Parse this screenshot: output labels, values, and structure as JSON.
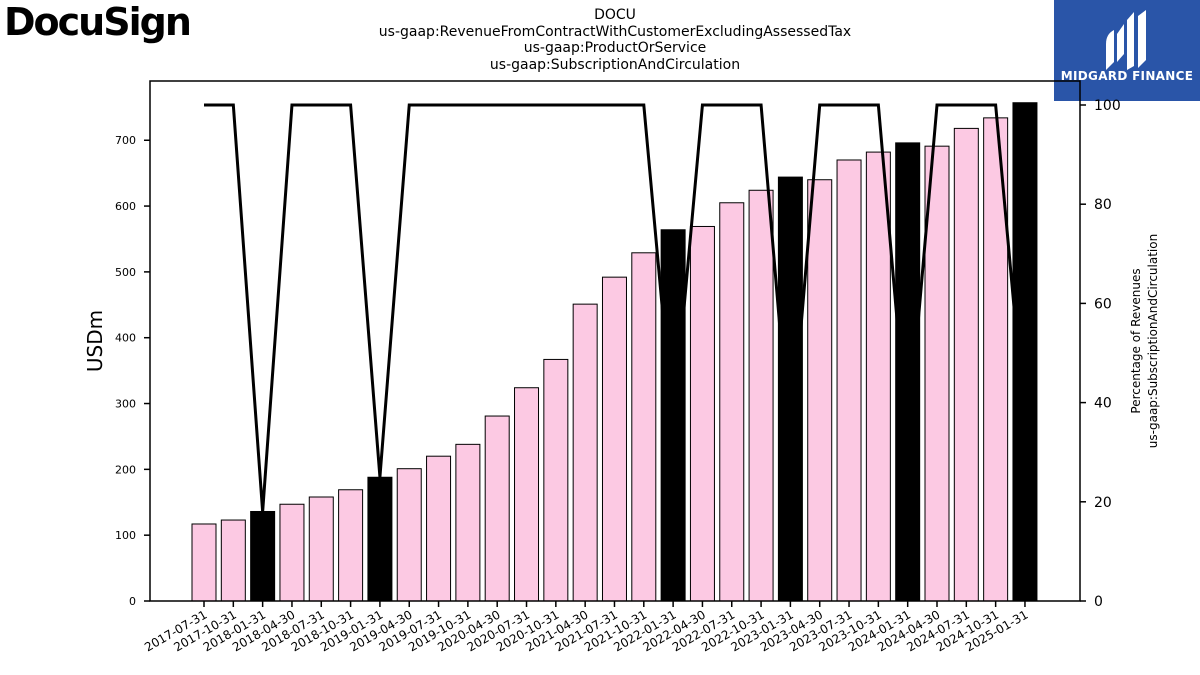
{
  "brand": {
    "logo": "DocuSign",
    "badge": "MIDGARD FINANCE"
  },
  "colors": {
    "bar_subscription": "#fcc9e3",
    "bar_full": "#000000",
    "line": "#000000",
    "badge_bg": "#2a55a8"
  },
  "chart_data": {
    "type": "bar",
    "title": [
      "DOCU",
      "us-gaap:RevenueFromContractWithCustomerExcludingAssessedTax",
      "us-gaap:ProductOrService",
      "us-gaap:SubscriptionAndCirculation"
    ],
    "ylabel": "USDm",
    "y2label": [
      "Percentage of Revenues",
      "us-gaap:SubscriptionAndCirculation"
    ],
    "ylim": [
      0,
      790
    ],
    "y2lim": [
      0,
      100
    ],
    "yticks": [
      0,
      100,
      200,
      300,
      400,
      500,
      600,
      700
    ],
    "y2ticks": [
      0,
      20,
      40,
      60,
      80,
      100
    ],
    "categories": [
      "2017-07-31",
      "2017-10-31",
      "2018-01-31",
      "2018-04-30",
      "2018-07-31",
      "2018-10-31",
      "2019-01-31",
      "2019-04-30",
      "2019-07-31",
      "2019-10-31",
      "2020-04-30",
      "2020-07-31",
      "2020-10-31",
      "2021-04-30",
      "2021-07-31",
      "2021-10-31",
      "2022-01-31",
      "2022-04-30",
      "2022-07-31",
      "2022-10-31",
      "2023-01-31",
      "2023-04-30",
      "2023-07-31",
      "2023-10-31",
      "2024-01-31",
      "2024-04-30",
      "2024-07-31",
      "2024-10-31",
      "2025-01-31"
    ],
    "series": [
      {
        "values": [
          117,
          123,
          136,
          147,
          158,
          169,
          188,
          201,
          220,
          238,
          281,
          324,
          367,
          451,
          492,
          529,
          564,
          569,
          605,
          624,
          644,
          640,
          670,
          682,
          696,
          691,
          718,
          734,
          757
        ]
      },
      {
        "axis": "right",
        "type": "line",
        "values": [
          100,
          100,
          18,
          100,
          100,
          100,
          25,
          100,
          100,
          100,
          100,
          100,
          100,
          100,
          100,
          100,
          35,
          100,
          100,
          100,
          30,
          100,
          100,
          100,
          32,
          100,
          100,
          100,
          35
        ]
      }
    ],
    "highlighted_bars": [
      2,
      6,
      16,
      20,
      24,
      28
    ],
    "grid": false,
    "legend": "none"
  }
}
